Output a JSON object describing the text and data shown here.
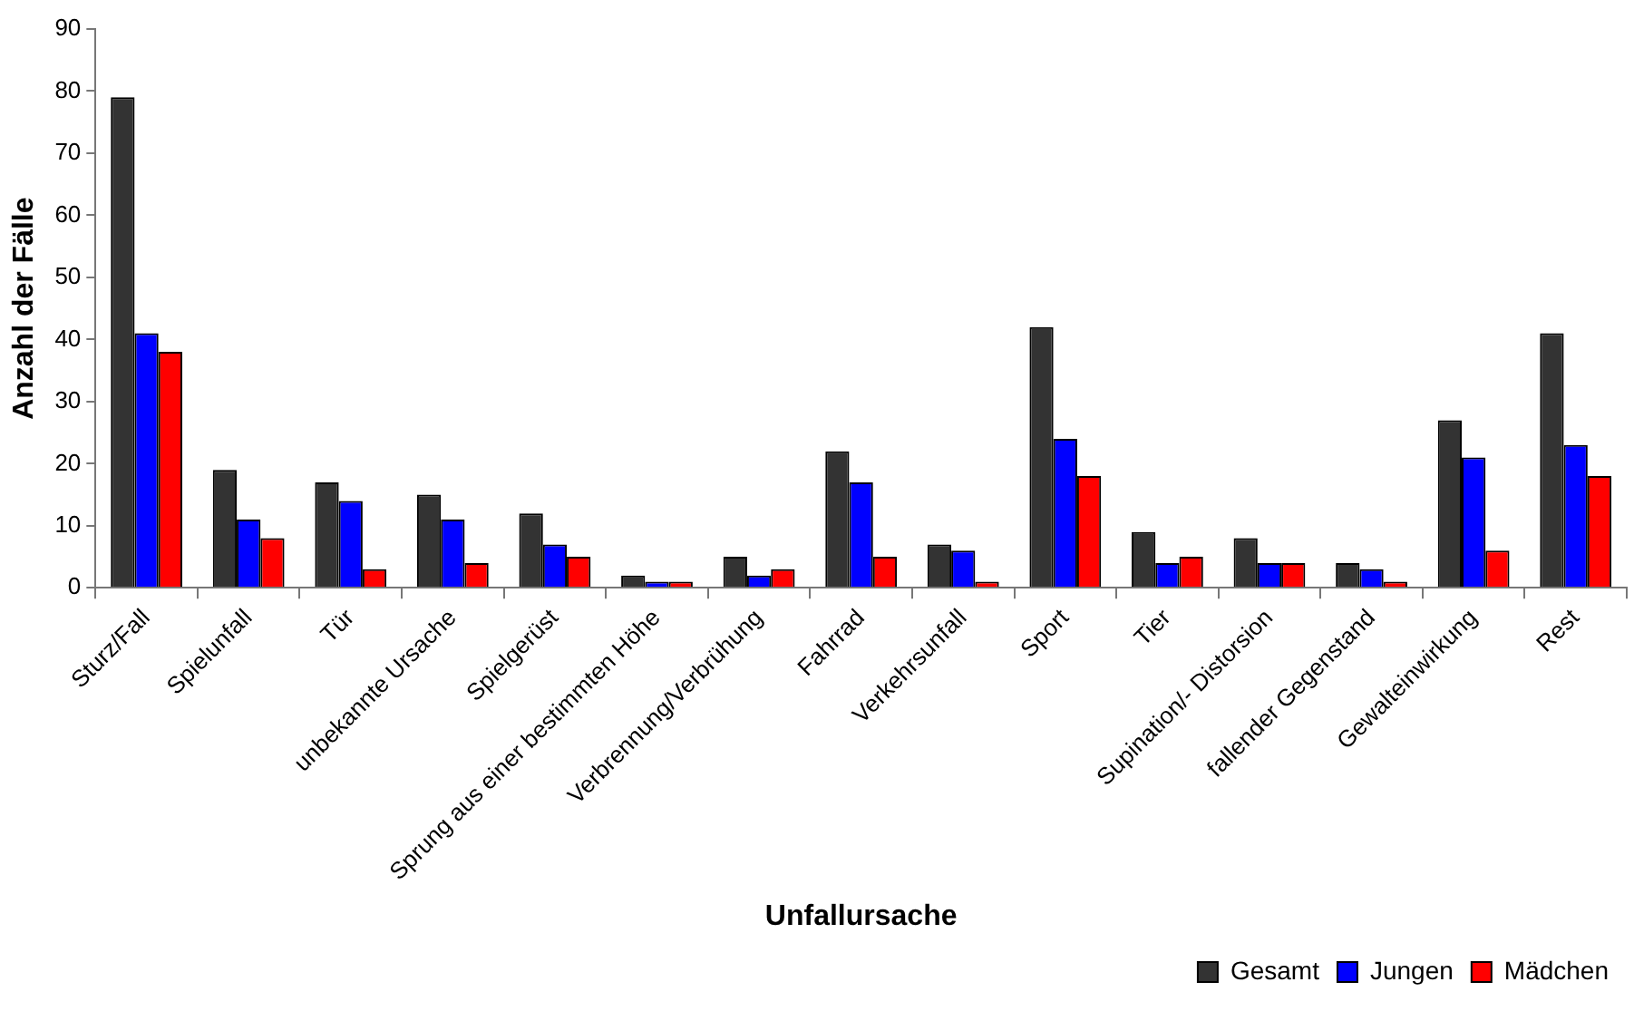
{
  "chart_data": {
    "type": "bar",
    "xlabel": "Unfallursache",
    "ylabel": "Anzahl der Fälle",
    "categories": [
      "Sturz/Fall",
      "Spielunfall",
      "Tür",
      "unbekannte Ursache",
      "Spielgerüst",
      "Sprung aus einer bestimmten Höhe",
      "Verbrennung/Verbrühung",
      "Fahrrad",
      "Verkehrsunfall",
      "Sport",
      "Tier",
      "Supination/- Distorsion",
      "fallender Gegenstand",
      "Gewalteinwirkung",
      "Rest"
    ],
    "series": [
      {
        "name": "Gesamt",
        "color": "#333333",
        "values": [
          79,
          19,
          17,
          15,
          12,
          2,
          5,
          22,
          7,
          42,
          9,
          8,
          4,
          27,
          41
        ]
      },
      {
        "name": "Jungen",
        "color": "#0000ff",
        "values": [
          41,
          11,
          14,
          11,
          7,
          1,
          2,
          17,
          6,
          24,
          4,
          4,
          3,
          21,
          23
        ]
      },
      {
        "name": "Mädchen",
        "color": "#ff0000",
        "values": [
          38,
          8,
          3,
          4,
          5,
          1,
          3,
          5,
          1,
          18,
          5,
          4,
          1,
          6,
          18
        ]
      }
    ],
    "ylim": [
      0,
      90
    ],
    "yticks": [
      0,
      10,
      20,
      30,
      40,
      50,
      60,
      70,
      80,
      90
    ],
    "grid": false,
    "legend": "bottom right"
  }
}
